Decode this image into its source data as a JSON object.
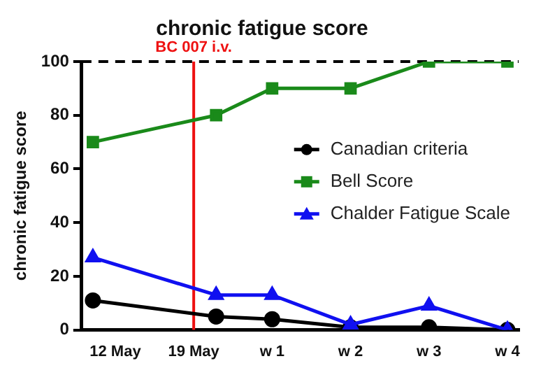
{
  "chart_data": {
    "type": "line",
    "title": "chronic fatigue score",
    "ylabel": "chronic fatigue score",
    "x": [
      "--05-10",
      "--05-21",
      "--05-26",
      "--06-02",
      "--06-09",
      "--06-16"
    ],
    "xlim": [
      "--05-09",
      "--06-17"
    ],
    "xticks": [
      {
        "value": "--05-12",
        "label": "12 May"
      },
      {
        "value": "--05-19",
        "label": "19 May"
      },
      {
        "value": "--05-26",
        "label": "w 1"
      },
      {
        "value": "--06-02",
        "label": "w 2"
      },
      {
        "value": "--06-09",
        "label": "w 3"
      },
      {
        "value": "--06-16",
        "label": "w 4"
      }
    ],
    "ylim": [
      0,
      100
    ],
    "yticks": [
      0,
      20,
      40,
      60,
      80,
      100
    ],
    "series": [
      {
        "name": "Canadian criteria",
        "color": "#000000",
        "marker": "circle",
        "values": [
          11,
          5,
          4,
          1,
          1,
          0
        ]
      },
      {
        "name": "Bell Score",
        "color": "#1a8a1a",
        "marker": "square",
        "values": [
          70,
          80,
          90,
          90,
          100,
          100
        ]
      },
      {
        "name": "Chalder Fatigue Scale",
        "color": "#1010f0",
        "marker": "triangle",
        "values": [
          27,
          13,
          13,
          2,
          9,
          0
        ]
      }
    ],
    "ref_lines": [
      {
        "axis": "y",
        "value": 100,
        "color": "#000000",
        "line_style": "dashed"
      },
      {
        "axis": "x",
        "value": "--05-19",
        "label": "BC 007 i.v.",
        "color": "#ee1111",
        "line_style": "solid"
      }
    ],
    "legend": "right",
    "grid": false,
    "line_style": "solid"
  }
}
